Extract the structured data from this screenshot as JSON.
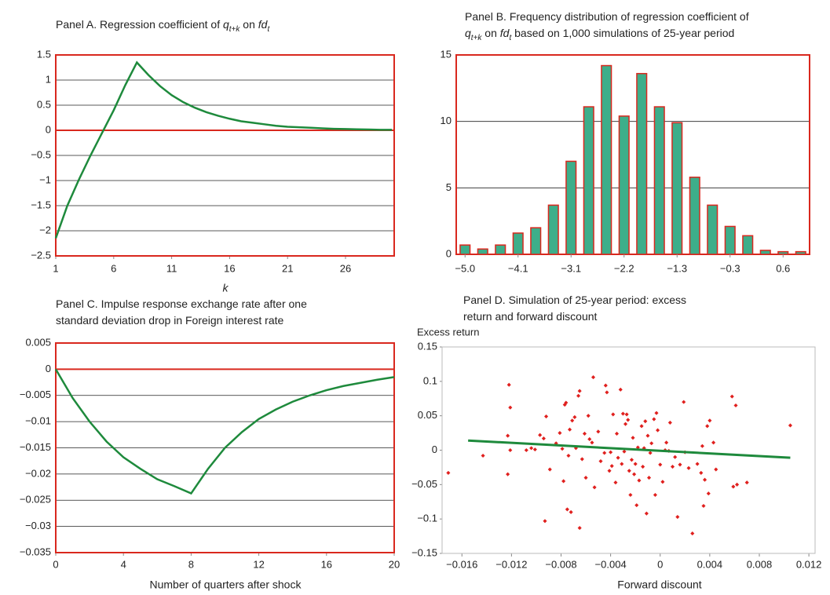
{
  "chart_data": [
    {
      "type": "line",
      "title": [
        [
          {
            "text": "Panel A. Regression coefficient of "
          },
          {
            "text": "q",
            "italic": true
          },
          {
            "text": "t+k",
            "italic": true,
            "sub": true
          },
          {
            "text": " on "
          },
          {
            "text": "fd",
            "italic": true
          },
          {
            "text": "t",
            "italic": true,
            "sub": true
          }
        ]
      ],
      "xlabel": "k",
      "xlabel_italic": true,
      "x": [
        1,
        2,
        3,
        4,
        5,
        6,
        7,
        8,
        9,
        10,
        11,
        12,
        13,
        14,
        15,
        16,
        17,
        18,
        19,
        20,
        21,
        22,
        23,
        24,
        25,
        26,
        27,
        28,
        29,
        30
      ],
      "series": [
        {
          "color": "#1e8a3c",
          "values": [
            -2.15,
            -1.5,
            -0.98,
            -0.5,
            -0.05,
            0.4,
            0.9,
            1.35,
            1.1,
            0.88,
            0.7,
            0.56,
            0.45,
            0.36,
            0.29,
            0.23,
            0.18,
            0.15,
            0.12,
            0.09,
            0.07,
            0.06,
            0.05,
            0.04,
            0.03,
            0.025,
            0.02,
            0.015,
            0.01,
            0.01
          ]
        }
      ],
      "xlim": [
        1,
        30.2
      ],
      "xticks": [
        1,
        6,
        11,
        16,
        21,
        26
      ],
      "ylim": [
        -2.5,
        1.5
      ],
      "yticks": [
        1.5,
        1,
        0.5,
        0,
        {
          "value": -0.5,
          "label": "−0.5"
        },
        {
          "value": -1,
          "label": "−1"
        },
        {
          "value": -1.5,
          "label": "−1.5"
        },
        {
          "value": -2,
          "label": "−2"
        },
        {
          "value": -2.5,
          "label": "−2.5"
        }
      ],
      "grid": true,
      "frame_color": "#d9281e",
      "zero_line_color": "#d9281e"
    },
    {
      "type": "bar",
      "title": [
        [
          {
            "text": "Panel B. Frequency distribution of regression coefficient of"
          }
        ],
        [
          {
            "text": "q",
            "italic": true
          },
          {
            "text": "t+k",
            "italic": true,
            "sub": true
          },
          {
            "text": " on "
          },
          {
            "text": "fd",
            "italic": true
          },
          {
            "text": "t",
            "italic": true,
            "sub": true
          },
          {
            "text": " based on 1,000 simulations of 25-year period"
          }
        ]
      ],
      "categories": [
        "−5.0",
        null,
        null,
        "−4.1",
        null,
        null,
        "−3.1",
        null,
        null,
        "−2.2",
        null,
        null,
        "−1.3",
        null,
        null,
        "−0.3",
        null,
        null,
        "0.6",
        null
      ],
      "values": [
        0.7,
        0.4,
        0.7,
        1.6,
        2.0,
        3.7,
        7.0,
        11.1,
        14.2,
        10.4,
        13.6,
        11.1,
        9.9,
        5.8,
        3.7,
        2.1,
        1.4,
        0.3,
        0.2,
        0.2
      ],
      "color": "#3dae8a",
      "edge_color": "#d9281e",
      "ylim": [
        0,
        15
      ],
      "yticks": [
        0,
        5,
        10,
        15
      ],
      "grid": true,
      "frame_color": "#d9281e"
    },
    {
      "type": "line",
      "title": [
        [
          {
            "text": "Panel C. Impulse response exchange rate after one"
          }
        ],
        [
          {
            "text": "standard deviation drop in Foreign interest rate"
          }
        ]
      ],
      "xlabel": "Number of quarters after shock",
      "x": [
        0,
        1,
        2,
        3,
        4,
        5,
        6,
        7,
        8,
        9,
        10,
        11,
        12,
        13,
        14,
        15,
        16,
        17,
        18,
        19,
        20
      ],
      "series": [
        {
          "color": "#1e8a3c",
          "values": [
            0,
            -0.0055,
            -0.01,
            -0.0138,
            -0.0168,
            -0.019,
            -0.021,
            -0.0223,
            -0.0237,
            -0.019,
            -0.015,
            -0.012,
            -0.0095,
            -0.0077,
            -0.0062,
            -0.005,
            -0.004,
            -0.0032,
            -0.0026,
            -0.002,
            -0.0015
          ]
        }
      ],
      "xlim": [
        0,
        20
      ],
      "xticks": [
        0,
        4,
        8,
        12,
        16,
        20
      ],
      "ylim": [
        -0.035,
        0.005
      ],
      "yticks": [
        0.005,
        0,
        {
          "value": -0.005,
          "label": "−0.005"
        },
        {
          "value": -0.01,
          "label": "−0.01"
        },
        {
          "value": -0.015,
          "label": "−0.015"
        },
        {
          "value": -0.02,
          "label": "−0.02"
        },
        {
          "value": -0.025,
          "label": "−0.025"
        },
        {
          "value": -0.03,
          "label": "−0.03"
        },
        {
          "value": -0.035,
          "label": "−0.035"
        }
      ],
      "grid": true,
      "frame_color": "#d9281e",
      "zero_line_color": "#d9281e"
    },
    {
      "type": "scatter",
      "title": [
        [
          {
            "text": "Panel D. Simulation of 25-year period: excess"
          }
        ],
        [
          {
            "text": "return and forward discount"
          }
        ]
      ],
      "ylabel": "Excess return",
      "xlabel": "Forward discount",
      "x": [
        -0.0171,
        -0.0143,
        -0.0122,
        -0.0121,
        -0.0123,
        -0.0121,
        -0.0123,
        -0.0108,
        -0.0104,
        -0.0101,
        -0.0097,
        -0.0094,
        -0.0092,
        -0.0093,
        -0.0089,
        -0.0084,
        -0.0081,
        -0.0079,
        -0.0078,
        -0.0077,
        -0.0076,
        -0.0075,
        -0.0074,
        -0.0073,
        -0.0072,
        -0.0071,
        -0.0069,
        -0.0068,
        -0.0066,
        -0.0065,
        -0.0065,
        -0.0063,
        -0.0061,
        -0.006,
        -0.0058,
        -0.0057,
        -0.0055,
        -0.0054,
        -0.0053,
        -0.005,
        -0.0048,
        -0.0045,
        -0.0044,
        -0.0043,
        -0.0041,
        -0.004,
        -0.0039,
        -0.0038,
        -0.0036,
        -0.0035,
        -0.0034,
        -0.0032,
        -0.0031,
        -0.003,
        -0.0029,
        -0.0028,
        -0.0027,
        -0.0026,
        -0.0025,
        -0.0024,
        -0.0023,
        -0.0022,
        -0.0021,
        -0.002,
        -0.0019,
        -0.0018,
        -0.0017,
        -0.0015,
        -0.0014,
        -0.0013,
        -0.0012,
        -0.0011,
        -0.001,
        -0.0009,
        -0.0008,
        -0.0007,
        -0.0005,
        -0.0004,
        -0.0003,
        -0.0002,
        0,
        0.0002,
        0.0004,
        0.0005,
        0.0007,
        0.0008,
        0.001,
        0.0012,
        0.0014,
        0.0016,
        0.0019,
        0.002,
        0.0023,
        0.0026,
        0.003,
        0.0033,
        0.0034,
        0.0035,
        0.0036,
        0.0038,
        0.0039,
        0.004,
        0.0043,
        0.0045,
        0.0058,
        0.0059,
        0.0061,
        0.0062,
        0.007,
        0.0105
      ],
      "y": [
        -0.033,
        -0.008,
        0.095,
        0.062,
        0.021,
        0,
        -0.035,
        0,
        0.003,
        0.001,
        0.022,
        0.017,
        0.049,
        -0.103,
        -0.028,
        0.01,
        0.025,
        0.002,
        -0.045,
        0.066,
        0.069,
        -0.086,
        -0.008,
        0.03,
        -0.09,
        0.043,
        0.048,
        0.003,
        0.079,
        -0.113,
        0.086,
        -0.013,
        0.024,
        -0.04,
        0.05,
        0.016,
        0.011,
        0.106,
        -0.054,
        0.027,
        -0.016,
        -0.004,
        0.094,
        0.084,
        -0.03,
        -0.003,
        -0.023,
        0.052,
        -0.047,
        0.024,
        -0.011,
        0.088,
        -0.02,
        0.053,
        -0.002,
        0.038,
        0.052,
        0.044,
        -0.03,
        -0.065,
        -0.014,
        0.018,
        -0.035,
        -0.02,
        -0.08,
        0.004,
        -0.044,
        0.035,
        -0.024,
        0.003,
        0.042,
        -0.092,
        0.021,
        -0.04,
        -0.004,
        0.01,
        0.045,
        -0.065,
        0.054,
        0.029,
        -0.021,
        -0.046,
        0,
        0.011,
        -0.001,
        0.04,
        -0.024,
        -0.01,
        -0.097,
        -0.021,
        0.07,
        -0.003,
        -0.026,
        -0.121,
        -0.02,
        -0.033,
        0.006,
        -0.081,
        -0.043,
        0.035,
        -0.063,
        0.043,
        0.011,
        -0.028,
        0.078,
        -0.053,
        0.065,
        -0.05,
        -0.047,
        0.036
      ],
      "color": "#e0201e",
      "fit": {
        "x": [
          -0.0155,
          0.0105
        ],
        "y": [
          0.014,
          -0.011
        ],
        "color": "#1e8a3c"
      },
      "xlim": [
        -0.0176,
        0.0125
      ],
      "xticks": [
        {
          "value": -0.016,
          "label": "−0.016"
        },
        {
          "value": -0.012,
          "label": "−0.012"
        },
        {
          "value": -0.008,
          "label": "−0.008"
        },
        {
          "value": -0.004,
          "label": "−0.004"
        },
        0,
        0.004,
        0.008,
        0.012
      ],
      "ylim": [
        -0.15,
        0.15
      ],
      "yticks": [
        0.15,
        0.1,
        0.05,
        0,
        {
          "value": -0.05,
          "label": "−0.05"
        },
        {
          "value": -0.1,
          "label": "−0.1"
        },
        {
          "value": -0.15,
          "label": "−0.15"
        }
      ],
      "grid": false,
      "frame_color": "#bbbbbb"
    }
  ]
}
